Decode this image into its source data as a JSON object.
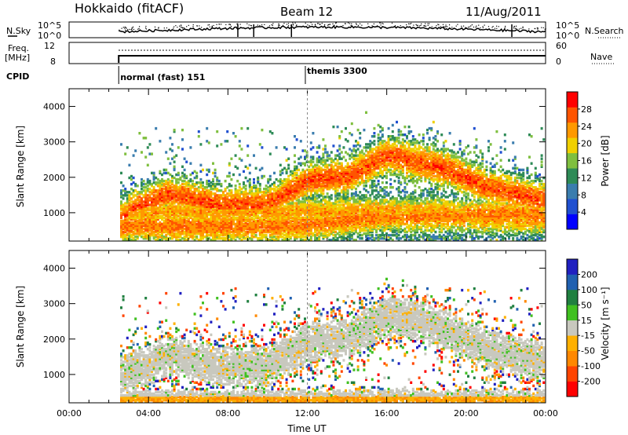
{
  "header": {
    "station": "Hokkaido (fitACF)",
    "beam": "Beam 12",
    "date": "11/Aug/2011"
  },
  "summary_panels": {
    "nsky": {
      "label": "N.Sky",
      "left_ticks": [
        "10^5",
        "10^0"
      ],
      "right_ticks": [
        "10^5",
        "10^0"
      ],
      "right_label": "N.Search"
    },
    "freq": {
      "label_line1": "Freq.",
      "label_line2": "[MHz]",
      "left_ticks": [
        "12",
        "8"
      ],
      "right_ticks": [
        "60",
        "0"
      ],
      "right_label": "Nave"
    },
    "cpid": {
      "label": "CPID",
      "modes": [
        {
          "name": "normal (fast) 151",
          "start_ut": 2.5
        },
        {
          "name": "themis 3300",
          "start_ut": 11.9
        }
      ]
    }
  },
  "colors": {
    "scale_power": [
      "#0000ff",
      "#2050d0",
      "#3a7dae",
      "#2e8b57",
      "#7fbf3f",
      "#f0d000",
      "#ff9900",
      "#ff5500",
      "#ff0000"
    ],
    "scale_velocity": [
      "#ff0000",
      "#ff4400",
      "#ff8800",
      "#ffb000",
      "#c8c8be",
      "#40c020",
      "#208040",
      "#2060b0",
      "#2020c0"
    ],
    "ground_gray": "#c8c8be"
  },
  "chart_data": [
    {
      "type": "heatmap",
      "id": "power",
      "ylabel": "Slant Range [km]",
      "yticks": [
        "1000",
        "2000",
        "3000",
        "4000"
      ],
      "ylim": [
        200,
        4500
      ],
      "xlim": [
        0,
        24
      ],
      "colorbar_label": "Power [dB]",
      "colorbar_ticks": [
        "4",
        "8",
        "12",
        "16",
        "20",
        "24",
        "28"
      ],
      "colorbar_range": [
        0,
        32
      ],
      "data_start_ut": 2.5,
      "features": [
        {
          "name": "main band",
          "track": [
            [
              2.5,
              900
            ],
            [
              5,
              1500
            ],
            [
              7.5,
              1200
            ],
            [
              10,
              1200
            ],
            [
              12,
              1900
            ],
            [
              14,
              2000
            ],
            [
              16,
              2600
            ],
            [
              17.5,
              2400
            ],
            [
              19,
              2200
            ],
            [
              21,
              1700
            ],
            [
              24,
              1300
            ]
          ],
          "value": 27
        },
        {
          "name": "lower echo band",
          "track": [
            [
              12,
              600
            ],
            [
              14,
              800
            ],
            [
              16,
              900
            ],
            [
              17.5,
              900
            ]
          ],
          "value": 25
        },
        {
          "name": "late low band",
          "track": [
            [
              19,
              1000
            ],
            [
              21,
              800
            ],
            [
              24,
              800
            ]
          ],
          "value": 23
        }
      ]
    },
    {
      "type": "heatmap",
      "id": "velocity",
      "ylabel": "Slant Range [km]",
      "yticks": [
        "1000",
        "2000",
        "3000",
        "4000"
      ],
      "ylim": [
        200,
        4500
      ],
      "xlim": [
        0,
        24
      ],
      "xlabel": "Time UT",
      "xticks": [
        "00:00",
        "04:00",
        "08:00",
        "12:00",
        "16:00",
        "20:00",
        "00:00"
      ],
      "colorbar_label": "Velocity [m s⁻¹]",
      "colorbar_ticks": [
        "200",
        "100",
        "50",
        "15",
        "-15",
        "-50",
        "-100",
        "-200"
      ],
      "data_start_ut": 2.5,
      "features": [
        {
          "name": "ground scatter band",
          "track": [
            [
              2.5,
              900
            ],
            [
              5,
              1500
            ],
            [
              7.5,
              1200
            ],
            [
              10,
              1200
            ],
            [
              12,
              1900
            ],
            [
              14,
              2000
            ],
            [
              16,
              2600
            ],
            [
              17.5,
              2500
            ],
            [
              19,
              2200
            ],
            [
              21,
              1700
            ],
            [
              24,
              1300
            ]
          ],
          "value": 0
        },
        {
          "name": "near-range flow",
          "track": [
            [
              2.5,
              300
            ],
            [
              24,
              300
            ]
          ],
          "value": -40
        }
      ]
    }
  ]
}
